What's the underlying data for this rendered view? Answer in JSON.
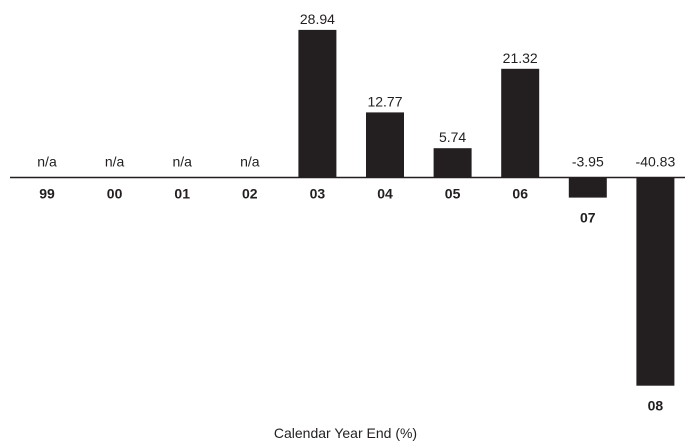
{
  "chart_data": {
    "type": "bar",
    "categories": [
      "99",
      "00",
      "01",
      "02",
      "03",
      "04",
      "05",
      "06",
      "07",
      "08"
    ],
    "values": [
      null,
      null,
      null,
      null,
      28.94,
      12.77,
      5.74,
      21.32,
      -3.95,
      -40.83
    ],
    "data_labels": [
      "n/a",
      "n/a",
      "n/a",
      "n/a",
      "28.94",
      "12.77",
      "5.74",
      "21.32",
      "-3.95",
      "-40.83"
    ],
    "title": "",
    "xlabel": "Calendar Year End (%)",
    "ylabel": "",
    "grid": false,
    "legend": "none",
    "bar_color": "#231f20",
    "axis_color": "#231f20"
  }
}
